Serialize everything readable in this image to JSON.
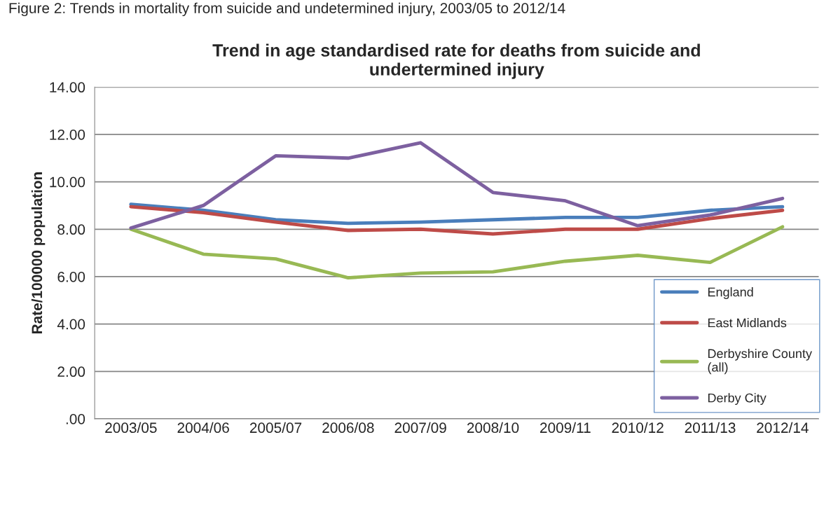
{
  "chart_data": {
    "type": "line",
    "title": "Trend in age standardised rate for deaths from suicide and\nundertermined injury",
    "ylabel": "Rate/100000 population",
    "annotations": [
      "Figure 2: Trends in mortality from suicide and undetermined injury, 2003/05 to 2012/14"
    ],
    "categories": [
      "2003/05",
      "2004/06",
      "2005/07",
      "2006/08",
      "2007/09",
      "2008/10",
      "2009/11",
      "2010/12",
      "2011/13",
      "2012/14"
    ],
    "series": [
      {
        "name": "England",
        "color": "#4a7ebb",
        "values": [
          9.05,
          8.8,
          8.4,
          8.25,
          8.3,
          8.4,
          8.5,
          8.5,
          8.8,
          8.95
        ]
      },
      {
        "name": "East Midlands",
        "color": "#be4b48",
        "values": [
          8.95,
          8.7,
          8.3,
          7.95,
          8.0,
          7.8,
          8.0,
          8.0,
          8.45,
          8.8
        ]
      },
      {
        "name": "Derbyshire County\n(all)",
        "color": "#98b954",
        "values": [
          8.0,
          6.95,
          6.75,
          5.95,
          6.15,
          6.2,
          6.65,
          6.9,
          6.6,
          8.1
        ]
      },
      {
        "name": "Derby City",
        "color": "#7d60a0",
        "values": [
          8.05,
          9.0,
          11.1,
          11.0,
          11.65,
          9.55,
          9.2,
          8.15,
          8.6,
          9.3
        ]
      }
    ],
    "ylim": [
      0,
      14
    ],
    "yticks": [
      {
        "value": 0,
        "label": ".00"
      },
      {
        "value": 2,
        "label": "2.00"
      },
      {
        "value": 4,
        "label": "4.00"
      },
      {
        "value": 6,
        "label": "6.00"
      },
      {
        "value": 8,
        "label": "8.00"
      },
      {
        "value": 10,
        "label": "10.00"
      },
      {
        "value": 12,
        "label": "12.00"
      },
      {
        "value": 14,
        "label": "14.00"
      }
    ],
    "grid": "y",
    "legend": "bottom right",
    "marker": "none",
    "line_style": "solid"
  }
}
